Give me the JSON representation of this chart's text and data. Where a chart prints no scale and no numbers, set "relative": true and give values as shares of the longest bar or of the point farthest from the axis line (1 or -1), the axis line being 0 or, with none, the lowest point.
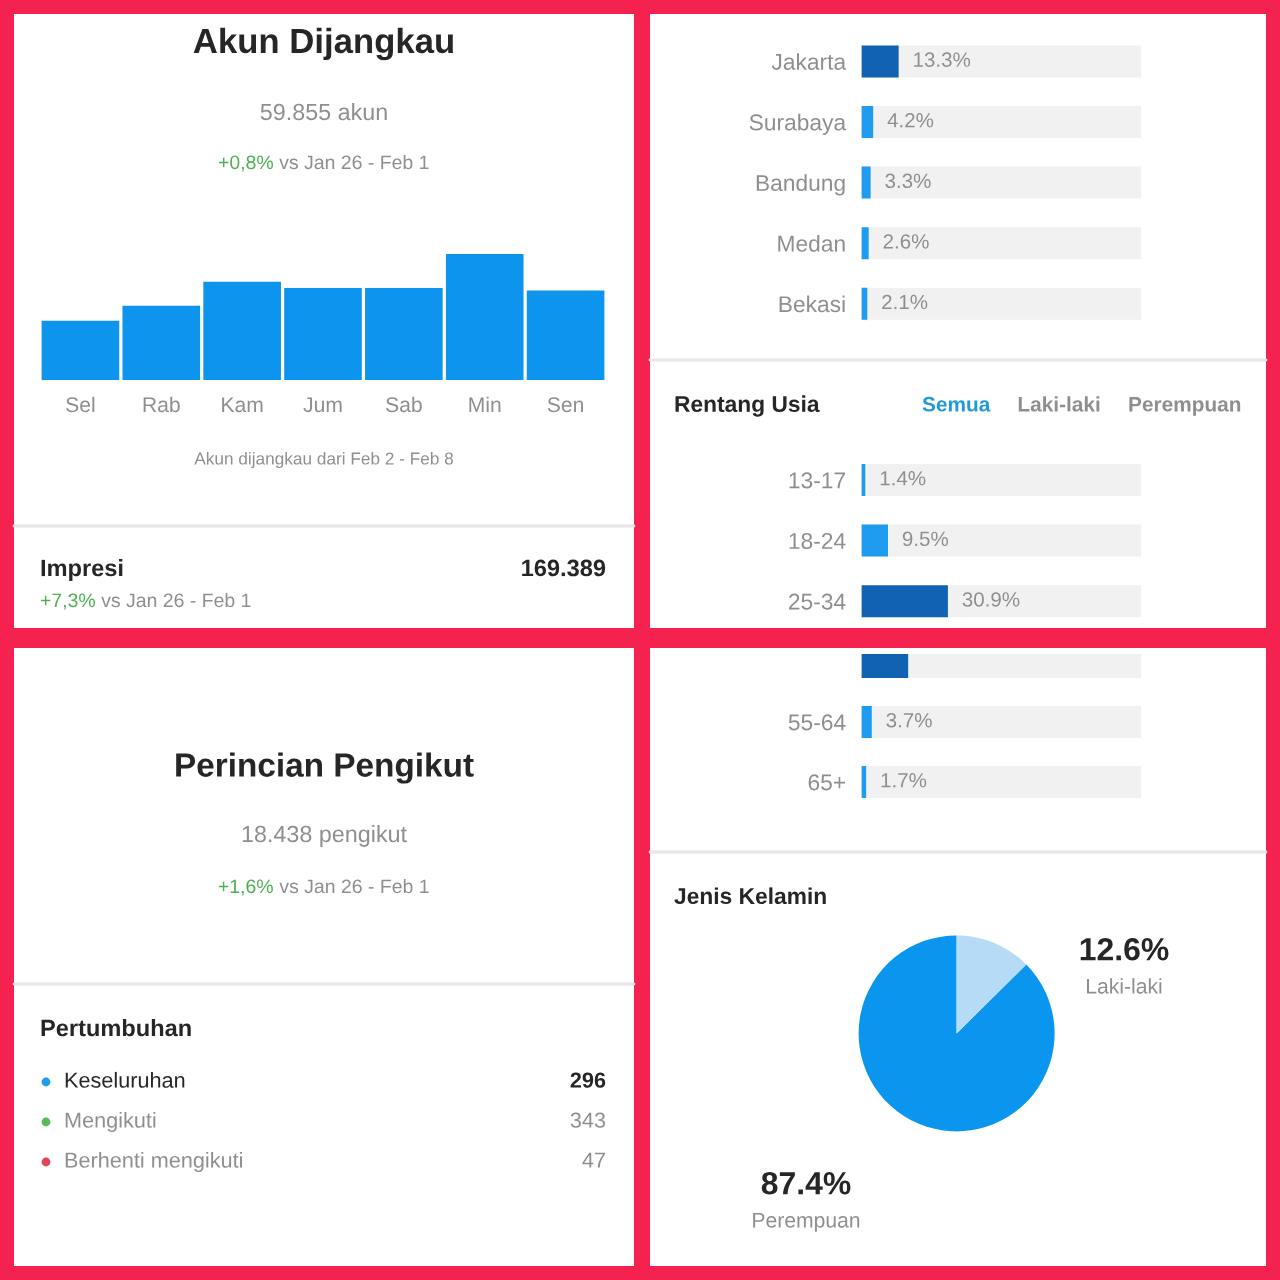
{
  "chart_data": [
    {
      "type": "bar",
      "title": "Akun Dijangkau",
      "subtitle": "59.855 akun",
      "categories": [
        "Sel",
        "Rab",
        "Kam",
        "Jum",
        "Sab",
        "Min",
        "Sen"
      ],
      "values": [
        0.47,
        0.59,
        0.78,
        0.73,
        0.73,
        1,
        0.71
      ],
      "color": "#0d95ee",
      "relative": true,
      "tick_labels": "x",
      "annotations": [
        "+0,8% vs Jan 26 - Feb 1",
        "Akun dijangkau dari Feb 2 - Feb 8",
        "Impresi",
        "169.389",
        "+7,3% vs Jan 26 - Feb 1"
      ]
    },
    {
      "type": "bar",
      "orientation": "horizontal",
      "categories": [
        "Jakarta",
        "Surabaya",
        "Bandung",
        "Medan",
        "Bekasi"
      ],
      "values": [
        13.3,
        4.2,
        3.3,
        2.6,
        2.1
      ],
      "colors": [
        "#1262b3",
        "#1f9bef",
        "#1f9bef",
        "#1f9bef",
        "#1f9bef"
      ],
      "xlim": [
        0,
        100
      ],
      "tick_labels": "y",
      "value_labels": [
        "13.3%",
        "4.2%",
        "3.3%",
        "2.6%",
        "2.1%"
      ]
    },
    {
      "type": "bar",
      "orientation": "horizontal",
      "title": "Rentang Usia",
      "annotations": [
        "Semua",
        "Laki-laki",
        "Perempuan"
      ],
      "categories": [
        "13-17",
        "18-24",
        "25-34"
      ],
      "values": [
        1.4,
        9.5,
        30.9
      ],
      "colors": [
        "#1f9bef",
        "#1f9bef",
        "#1262b3"
      ],
      "xlim": [
        0,
        100
      ],
      "tick_labels": "y",
      "value_labels": [
        "1.4%",
        "9.5%",
        "30.9%"
      ]
    },
    {
      "type": "other",
      "title": "Perincian Pengikut",
      "subtitle": "18.438 pengikut",
      "annotations": [
        "+1,6% vs Jan 26 - Feb 1",
        "Pertumbuhan"
      ],
      "categories": [
        "Keseluruhan",
        "Mengikuti",
        "Berhenti mengikuti"
      ],
      "values": [
        296,
        343,
        47
      ],
      "value_labels": [
        "296",
        "343",
        "47"
      ],
      "colors": [
        "#1f9bef",
        "#5cb85c",
        "#e0455a"
      ]
    },
    {
      "type": "bar",
      "orientation": "horizontal",
      "categories": [
        null,
        "55-64",
        "65+"
      ],
      "values": [
        16.7,
        3.7,
        1.7
      ],
      "colors": [
        "#1262b3",
        "#1f9bef",
        "#1f9bef"
      ],
      "xlim": [
        0,
        100
      ],
      "tick_labels": "y",
      "value_labels": [
        null,
        "3.7%",
        "1.7%"
      ]
    },
    {
      "type": "pie",
      "title": "Jenis Kelamin",
      "categories": [
        "Perempuan",
        "Laki-laki"
      ],
      "values": [
        87.4,
        12.6
      ],
      "colors": [
        "#0a96ee",
        "#b5dbf7"
      ],
      "value_labels": [
        "87.4%",
        "12.6%"
      ]
    }
  ]
}
